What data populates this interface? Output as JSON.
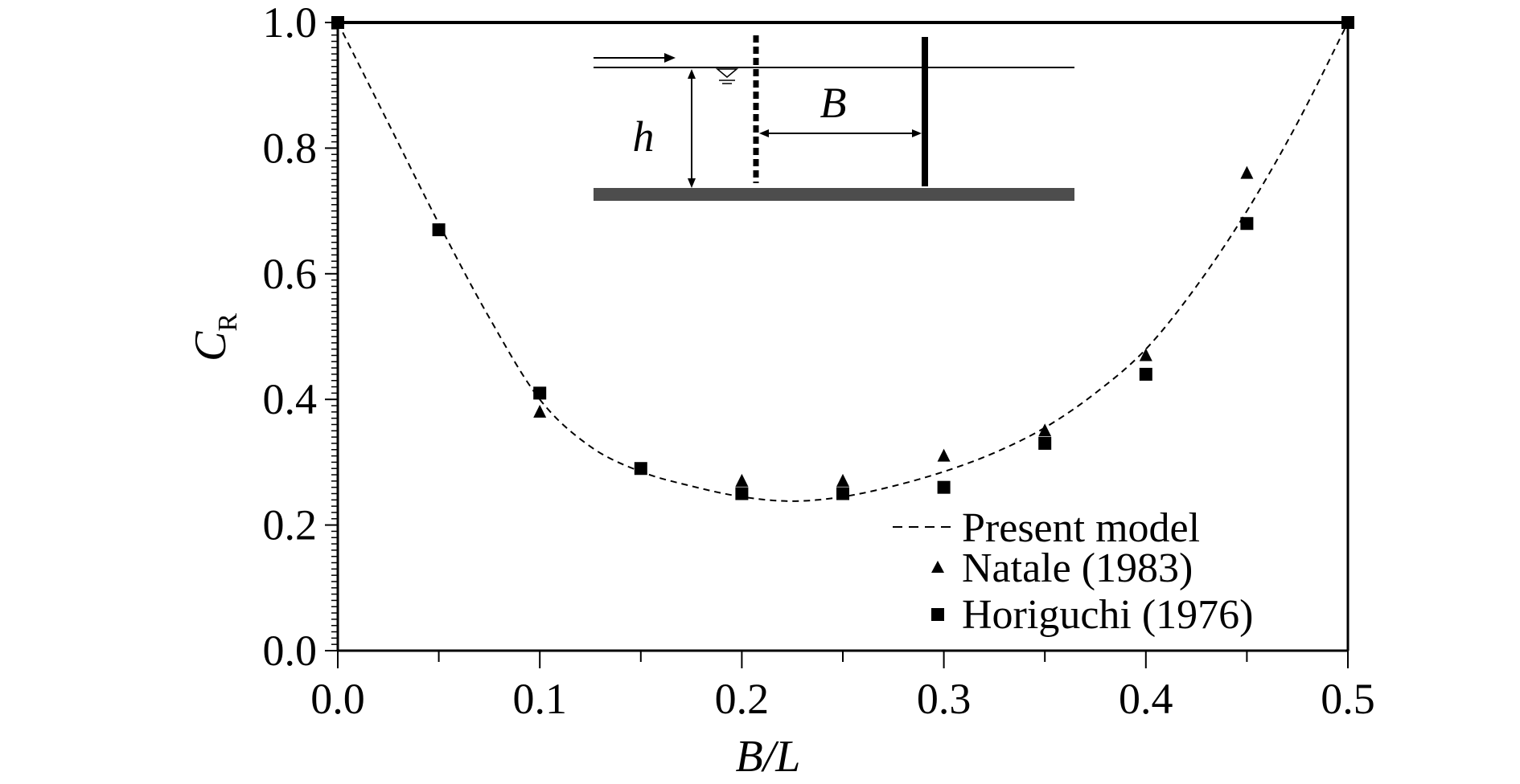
{
  "chart_data": {
    "type": "scatter",
    "xlabel": "B/L",
    "ylabel": "C",
    "ylabel_subscript": "R",
    "xlim": [
      0.0,
      0.5
    ],
    "ylim": [
      0.0,
      1.0
    ],
    "x_ticks": [
      "0.0",
      "0.1",
      "0.2",
      "0.3",
      "0.4",
      "0.5"
    ],
    "y_ticks": [
      "0.0",
      "0.2",
      "0.4",
      "0.6",
      "0.8",
      "1.0"
    ],
    "legend_position": "bottom-right",
    "series": [
      {
        "name": "Present model",
        "kind": "dashed-line",
        "color": "#000000",
        "x": [
          0.0,
          0.025,
          0.05,
          0.075,
          0.1,
          0.125,
          0.15,
          0.175,
          0.2,
          0.225,
          0.25,
          0.275,
          0.3,
          0.325,
          0.35,
          0.375,
          0.4,
          0.425,
          0.45,
          0.475,
          0.5
        ],
        "y": [
          1.0,
          0.84,
          0.68,
          0.53,
          0.4,
          0.325,
          0.285,
          0.262,
          0.245,
          0.238,
          0.245,
          0.262,
          0.285,
          0.315,
          0.355,
          0.41,
          0.48,
          0.58,
          0.7,
          0.84,
          1.0
        ]
      },
      {
        "name": "Natale (1983)",
        "kind": "triangle-markers",
        "color": "#000000",
        "x": [
          0.1,
          0.2,
          0.25,
          0.3,
          0.35,
          0.4,
          0.45
        ],
        "y": [
          0.38,
          0.27,
          0.27,
          0.31,
          0.35,
          0.47,
          0.76
        ]
      },
      {
        "name": "Horiguchi (1976)",
        "kind": "square-markers",
        "color": "#000000",
        "x": [
          0.0,
          0.05,
          0.1,
          0.15,
          0.2,
          0.25,
          0.3,
          0.35,
          0.4,
          0.45,
          0.5
        ],
        "y": [
          1.0,
          0.67,
          0.41,
          0.29,
          0.25,
          0.25,
          0.26,
          0.33,
          0.44,
          0.68,
          1.0
        ]
      }
    ],
    "inset_labels": {
      "h": "h",
      "B": "B"
    }
  }
}
